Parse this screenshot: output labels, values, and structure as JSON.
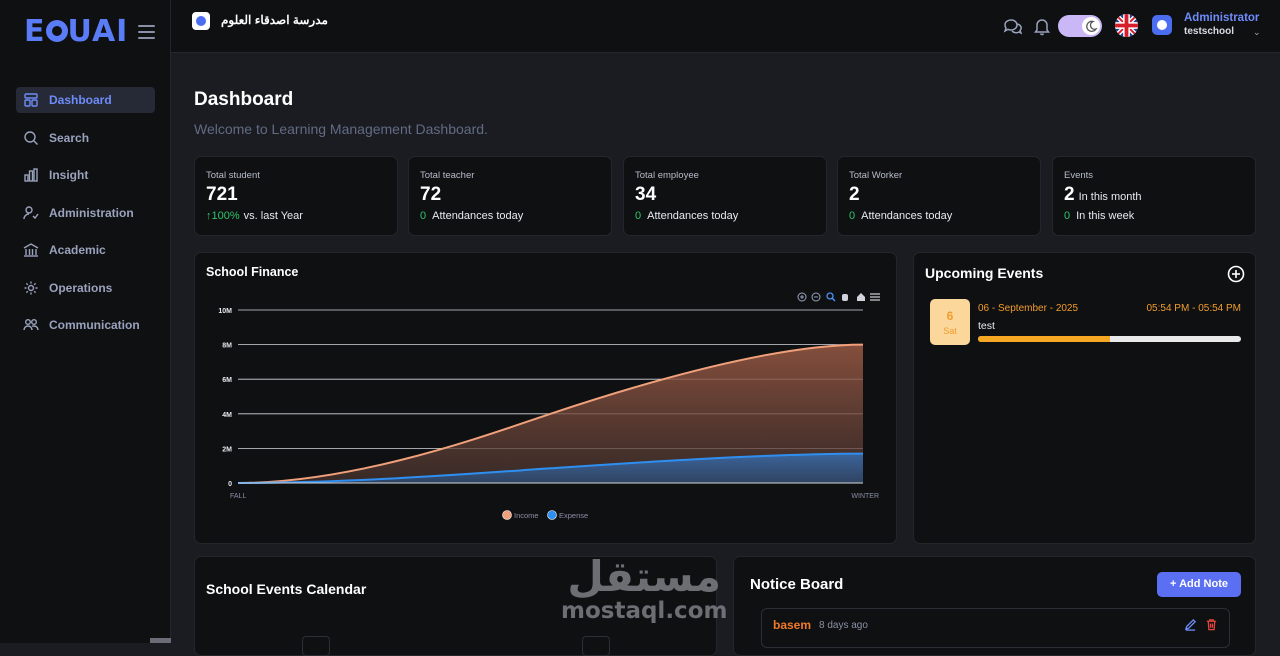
{
  "app": {
    "logo_text": "EDUAI"
  },
  "sidebar": {
    "items": [
      {
        "label": "Dashboard",
        "icon": "dashboard-icon",
        "active": true
      },
      {
        "label": "Search",
        "icon": "search-icon"
      },
      {
        "label": "Insight",
        "icon": "bar-chart-icon"
      },
      {
        "label": "Administration",
        "icon": "user-settings-icon"
      },
      {
        "label": "Academic",
        "icon": "building-icon"
      },
      {
        "label": "Operations",
        "icon": "gear-icon"
      },
      {
        "label": "Communication",
        "icon": "users-icon"
      }
    ]
  },
  "topbar": {
    "school_name": "مدرسة اصدقاء العلوم",
    "user": {
      "role": "Administrator",
      "username": "testschool"
    },
    "icons": [
      "chat-icon",
      "bell-icon",
      "theme-toggle",
      "uk-flag-icon",
      "avatar"
    ]
  },
  "header": {
    "title": "Dashboard",
    "subtitle": "Welcome to Learning Management Dashboard."
  },
  "stats": [
    {
      "label": "Total student",
      "value": "721",
      "note_value": "↑100%",
      "note_text": "vs. last Year"
    },
    {
      "label": "Total teacher",
      "value": "72",
      "note_value": "0",
      "note_text": "Attendances today"
    },
    {
      "label": "Total employee",
      "value": "34",
      "note_value": "0",
      "note_text": "Attendances today"
    },
    {
      "label": "Total Worker",
      "value": "2",
      "note_value": "0",
      "note_text": "Attendances today"
    },
    {
      "label": "Events",
      "value": "2",
      "inline_text": "In this month",
      "note_value": "0",
      "note_text": "In this week"
    }
  ],
  "finance": {
    "title": "School Finance",
    "toolbar_icons": [
      "zoom-in-icon",
      "zoom-out-icon",
      "magnify-icon",
      "pan-hand-icon",
      "home-icon",
      "menu-icon"
    ]
  },
  "chart_data": {
    "type": "area",
    "x_labels": [
      "FALL",
      "WINTER"
    ],
    "ylim": [
      0,
      10000000
    ],
    "y_ticks": [
      "0",
      "2M",
      "4M",
      "6M",
      "8M",
      "10M"
    ],
    "series": [
      {
        "name": "Income",
        "color": "#f0a07a",
        "start": 0,
        "end": 8000000
      },
      {
        "name": "Expense",
        "color": "#2e8ff0",
        "start": 0,
        "end": 1700000
      }
    ],
    "legend_position": "bottom"
  },
  "events": {
    "title": "Upcoming Events",
    "items": [
      {
        "day": "6",
        "dow": "Sat",
        "date": "06 - September - 2025",
        "time": "05:54 PM - 05:54 PM",
        "name": "test",
        "progress": 0.5
      }
    ]
  },
  "calendar": {
    "title": "School Events Calendar"
  },
  "notice": {
    "title": "Notice Board",
    "add_label": "+ Add Note",
    "items": [
      {
        "author": "basem",
        "time": "8 days ago"
      }
    ]
  },
  "watermark": {
    "arabic": "مستقل",
    "latin": "mostaql.com"
  }
}
